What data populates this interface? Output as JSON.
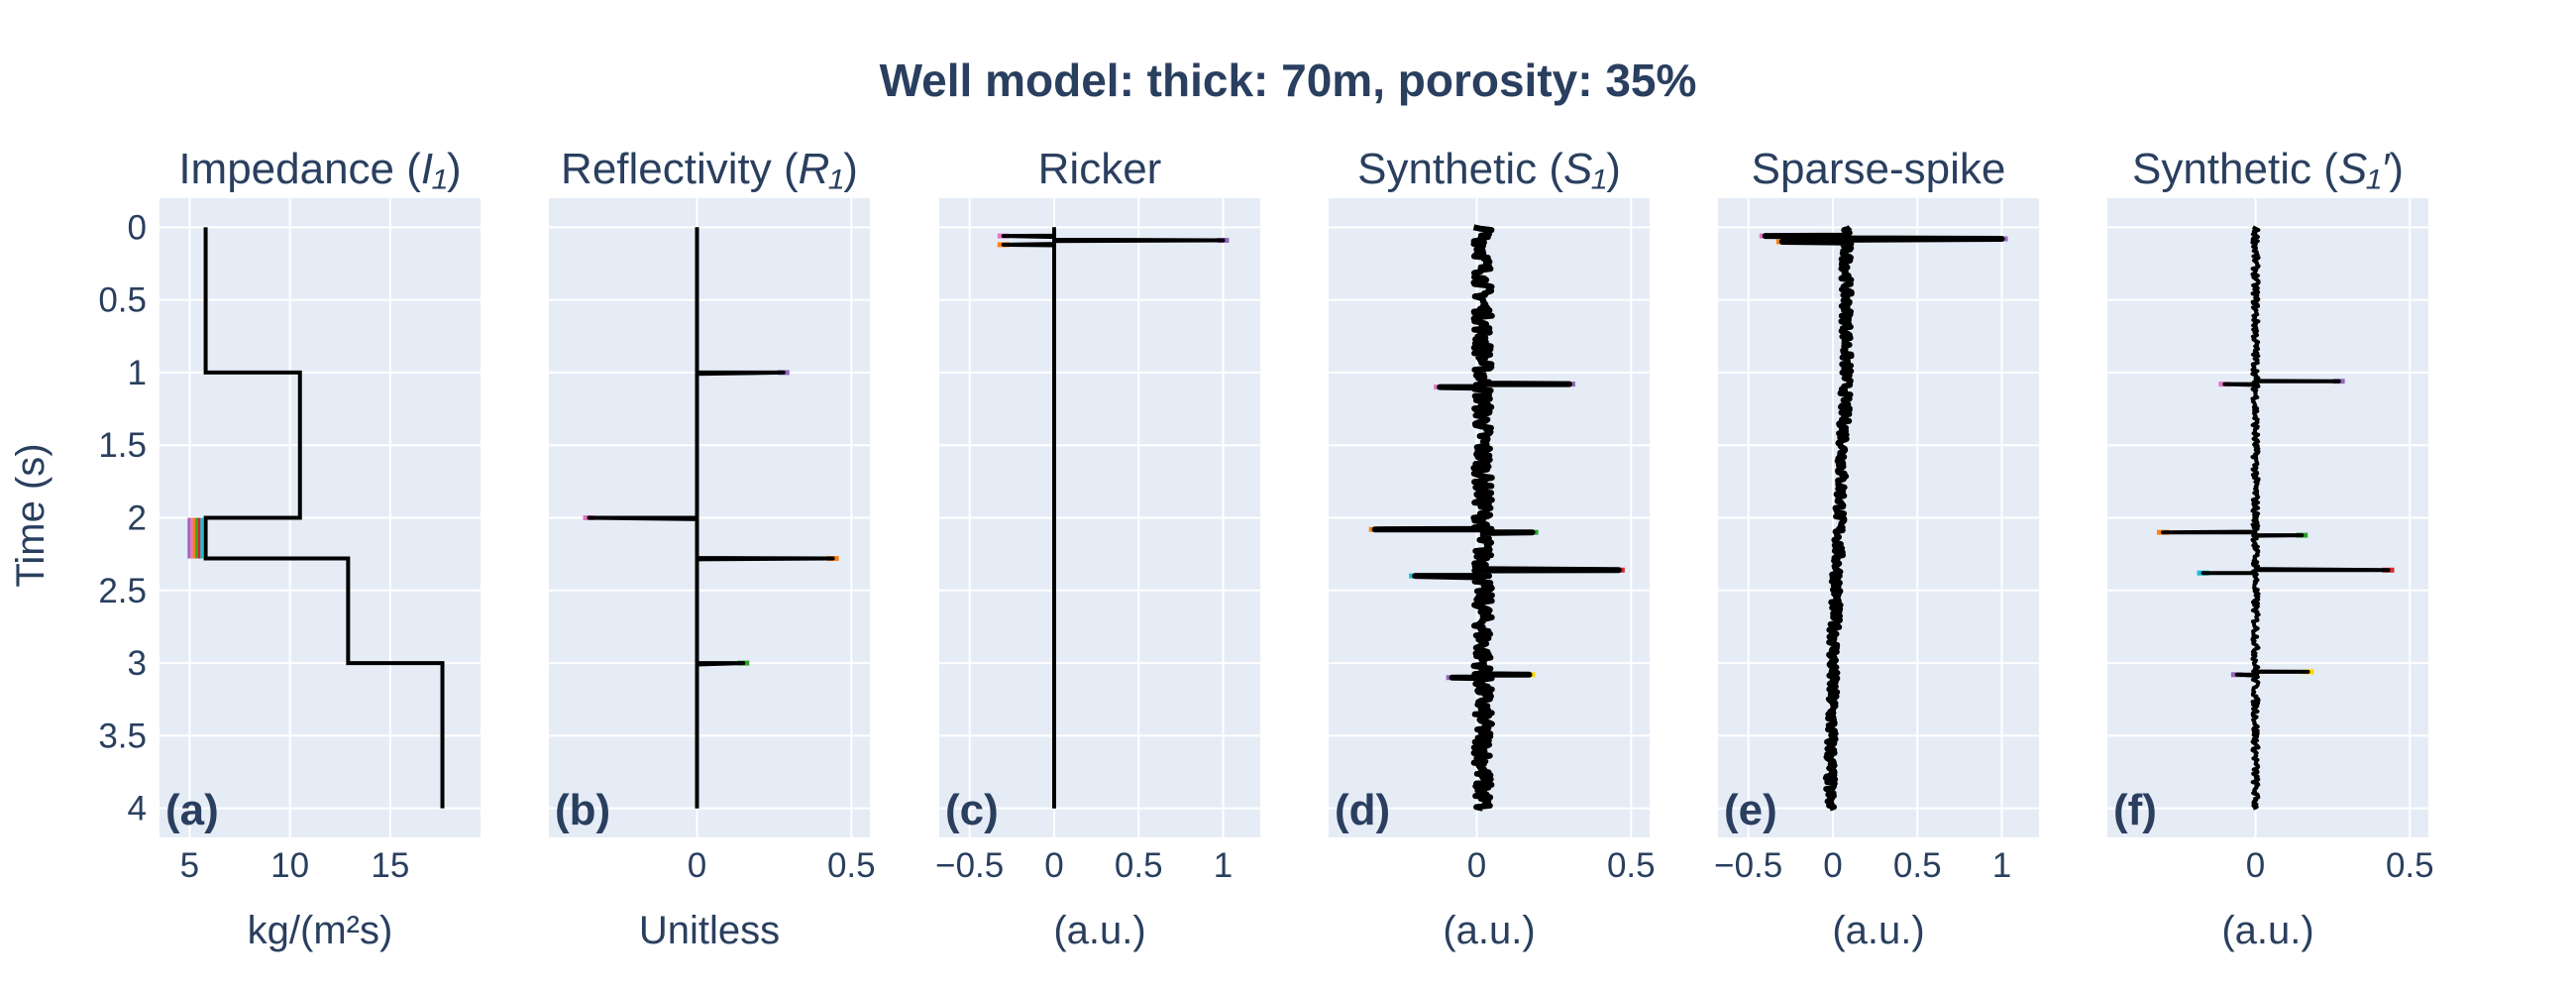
{
  "figure": {
    "title": "Well model: thick: 70m, porosity: 35%",
    "ylabel": "Time (s)",
    "background_color": "#e5ecf6",
    "grid_color": "#ffffff",
    "text_color": "#2a3f5f",
    "trace_color": "#000000",
    "accent_colors": [
      "#9467bd",
      "#e377c2",
      "#ff7f0e",
      "#2ca02c",
      "#d62728",
      "#17becf",
      "#ffd700"
    ]
  },
  "chart_data": [
    {
      "type": "line",
      "panel": "(a)",
      "title": "Impedance (I₁)",
      "title_main": "Impedance (",
      "title_italic": "I₁",
      "title_end": ")",
      "xlabel": "kg/(m²s)",
      "ylabel": "Time (s)",
      "xlim": [
        3.5,
        19.5
      ],
      "ylim": [
        4.2,
        -0.2
      ],
      "xticks": [
        5,
        10,
        15
      ],
      "xtick_labels": [
        "5",
        "10",
        "15"
      ],
      "yticks": [
        0,
        0.5,
        1,
        1.5,
        2,
        2.5,
        3,
        3.5,
        4
      ],
      "ytick_labels": [
        "0",
        "0.5",
        "1",
        "1.5",
        "2",
        "2.5",
        "3",
        "3.5",
        "4"
      ],
      "grid": true,
      "series": [
        {
          "x": [
            5.8,
            5.8,
            10.5,
            10.5,
            5.8,
            5.8,
            12.9,
            12.9,
            17.6,
            17.6
          ],
          "y": [
            0,
            1.0,
            1.0,
            2.0,
            2.0,
            2.28,
            2.28,
            3.0,
            3.0,
            4.0
          ]
        }
      ],
      "colored_band": {
        "x": [
          4.9,
          5.8
        ],
        "y": [
          2.0,
          2.28
        ]
      }
    },
    {
      "type": "line",
      "panel": "(b)",
      "title": "Reflectivity (R₁)",
      "title_main": "Reflectivity (",
      "title_italic": "R₁",
      "title_end": ")",
      "xlabel": "Unitless",
      "xlim": [
        -0.48,
        0.56
      ],
      "ylim": [
        4.2,
        -0.2
      ],
      "xticks": [
        0,
        0.5
      ],
      "xtick_labels": [
        "0",
        "0.5"
      ],
      "grid": true,
      "spikes": [
        {
          "t": 1.0,
          "a": 0.28
        },
        {
          "t": 2.0,
          "a": -0.35
        },
        {
          "t": 2.28,
          "a": 0.44
        },
        {
          "t": 3.0,
          "a": 0.15
        }
      ]
    },
    {
      "type": "line",
      "panel": "(c)",
      "title": "Ricker",
      "xlabel": "(a.u.)",
      "xlim": [
        -0.68,
        1.22
      ],
      "ylim": [
        4.2,
        -0.2
      ],
      "xticks": [
        -0.5,
        0,
        0.5,
        1
      ],
      "xtick_labels": [
        "−0.5",
        "0",
        "0.5",
        "1"
      ],
      "grid": true,
      "spikes": [
        {
          "t": 0.09,
          "a": 1.0,
          "width": 0.015
        },
        {
          "t": 0.06,
          "a": -0.3,
          "width": 0.01
        },
        {
          "t": 0.12,
          "a": -0.3,
          "width": 0.01
        }
      ]
    },
    {
      "type": "line",
      "panel": "(d)",
      "title": "Synthetic (S₁)",
      "title_main": "Synthetic (",
      "title_italic": "S₁",
      "title_end": ")",
      "xlabel": "(a.u.)",
      "xlim": [
        -0.48,
        0.56
      ],
      "ylim": [
        4.2,
        -0.2
      ],
      "xticks": [
        0,
        0.5
      ],
      "xtick_labels": [
        "0",
        "0.5"
      ],
      "grid": true,
      "noise": 0.03,
      "baseline": 0.02,
      "spikes": [
        {
          "t": 1.08,
          "a": 0.3
        },
        {
          "t": 1.1,
          "a": -0.12
        },
        {
          "t": 2.08,
          "a": -0.33
        },
        {
          "t": 2.1,
          "a": 0.18
        },
        {
          "t": 2.36,
          "a": 0.46
        },
        {
          "t": 2.4,
          "a": -0.2
        },
        {
          "t": 3.08,
          "a": 0.17
        },
        {
          "t": 3.1,
          "a": -0.08
        }
      ]
    },
    {
      "type": "line",
      "panel": "(e)",
      "title": "Sparse-spike",
      "xlabel": "(a.u.)",
      "xlim": [
        -0.68,
        1.22
      ],
      "ylim": [
        4.2,
        -0.2
      ],
      "xticks": [
        -0.5,
        0,
        0.5,
        1
      ],
      "xtick_labels": [
        "−0.5",
        "0",
        "0.5",
        "1"
      ],
      "grid": true,
      "noise": 0.03,
      "drift": [
        {
          "t": 0.15,
          "x": 0.08
        },
        {
          "t": 1.0,
          "x": 0.08
        },
        {
          "t": 2.0,
          "x": 0.04
        },
        {
          "t": 3.0,
          "x": 0.0
        },
        {
          "t": 4.0,
          "x": -0.02
        }
      ],
      "spikes": [
        {
          "t": 0.08,
          "a": 1.0,
          "width": 0.015
        },
        {
          "t": 0.06,
          "a": -0.4,
          "width": 0.01
        },
        {
          "t": 0.1,
          "a": -0.3,
          "width": 0.01
        }
      ]
    },
    {
      "type": "line",
      "panel": "(f)",
      "title": "Synthetic (S₁′)",
      "title_main": "Synthetic (",
      "title_italic": "S₁′",
      "title_end": ")",
      "xlabel": "(a.u.)",
      "xlim": [
        -0.48,
        0.56
      ],
      "ylim": [
        4.2,
        -0.2
      ],
      "xticks": [
        0,
        0.5
      ],
      "xtick_labels": [
        "0",
        "0.5"
      ],
      "grid": true,
      "noise": 0.01,
      "baseline": 0.0,
      "spikes": [
        {
          "t": 1.06,
          "a": 0.27
        },
        {
          "t": 1.08,
          "a": -0.1
        },
        {
          "t": 2.1,
          "a": -0.3
        },
        {
          "t": 2.12,
          "a": 0.15
        },
        {
          "t": 2.36,
          "a": 0.43
        },
        {
          "t": 2.38,
          "a": -0.17
        },
        {
          "t": 3.06,
          "a": 0.17
        },
        {
          "t": 3.08,
          "a": -0.06
        }
      ]
    }
  ]
}
